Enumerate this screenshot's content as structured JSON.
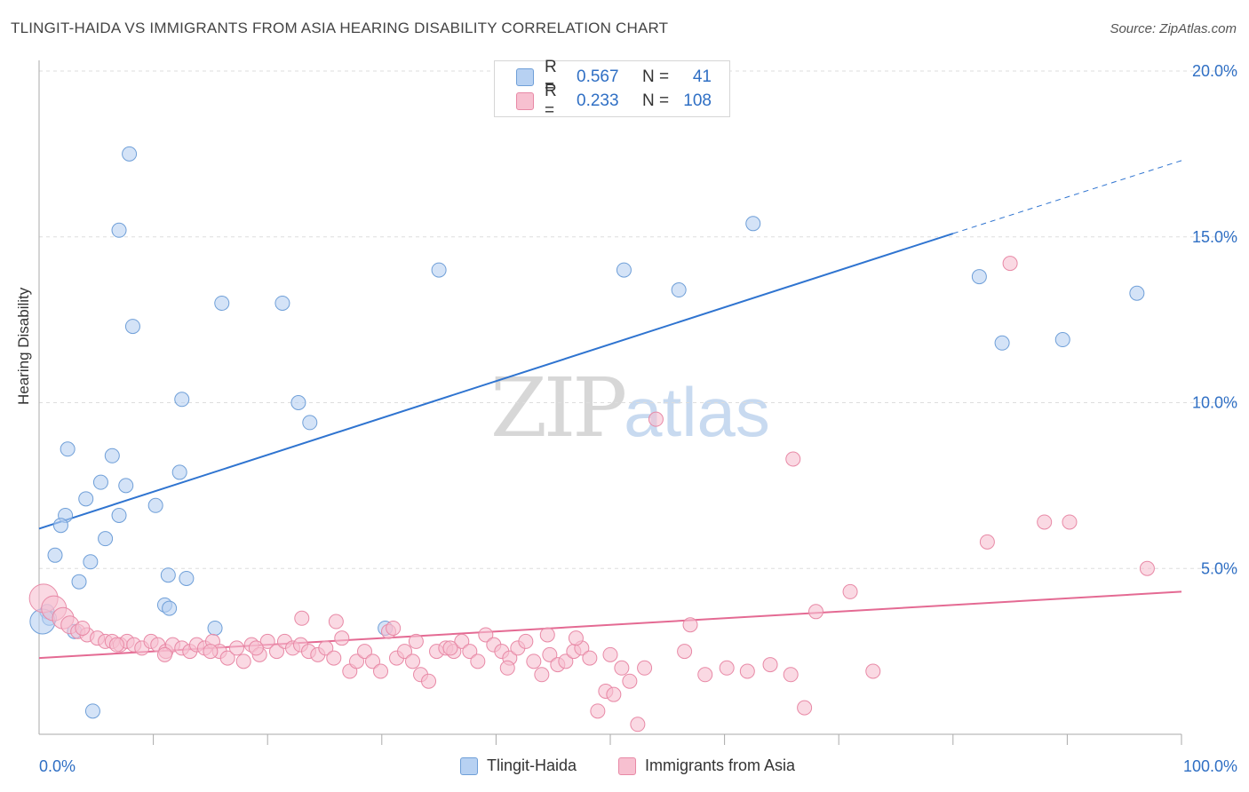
{
  "header": {
    "title": "TLINGIT-HAIDA VS IMMIGRANTS FROM ASIA HEARING DISABILITY CORRELATION CHART",
    "source": "Source: ZipAtlas.com"
  },
  "watermark": {
    "zip": "ZIP",
    "atlas": "atlas"
  },
  "legend": {
    "rows": [
      {
        "r_label": "R =",
        "r_value": "0.567",
        "n_label": "N =",
        "n_value": "41"
      },
      {
        "r_label": "R =",
        "r_value": "0.233",
        "n_label": "N =",
        "n_value": "108"
      }
    ]
  },
  "colors": {
    "blue_fill": "#b7d1f2",
    "blue_stroke": "#6f9fd8",
    "blue_line": "#2f74d0",
    "pink_fill": "#f7c0d0",
    "pink_stroke": "#e889a6",
    "pink_line": "#e46a93",
    "grid": "#dddddd",
    "tick_label": "#2f6fc4"
  },
  "chart_data": {
    "type": "scatter",
    "title": "TLINGIT-HAIDA VS IMMIGRANTS FROM ASIA HEARING DISABILITY CORRELATION CHART",
    "xlabel": "",
    "ylabel": "Hearing Disability",
    "xlim": [
      0,
      100
    ],
    "ylim": [
      0,
      20
    ],
    "x_tick_labels": [
      "0.0%",
      "100.0%"
    ],
    "y_ticks": [
      5,
      10,
      15,
      20
    ],
    "y_tick_labels": [
      "5.0%",
      "10.0%",
      "15.0%",
      "20.0%"
    ],
    "grid": true,
    "legend_position": "bottom",
    "series": [
      {
        "name": "Tlingit-Haida",
        "R": 0.567,
        "N": 41,
        "trend": {
          "x0": 0,
          "y0": 6.2,
          "x1": 80,
          "y1": 15.1,
          "dash_to_x": 100,
          "dash_to_y": 17.3
        },
        "points": [
          [
            7.9,
            17.5
          ],
          [
            7.0,
            15.2
          ],
          [
            8.2,
            12.3
          ],
          [
            16.0,
            13.0
          ],
          [
            21.3,
            13.0
          ],
          [
            12.5,
            10.1
          ],
          [
            22.7,
            10.0
          ],
          [
            23.7,
            9.4
          ],
          [
            2.5,
            8.6
          ],
          [
            6.4,
            8.4
          ],
          [
            12.3,
            7.9
          ],
          [
            5.4,
            7.6
          ],
          [
            7.6,
            7.5
          ],
          [
            4.1,
            7.1
          ],
          [
            10.2,
            6.9
          ],
          [
            2.3,
            6.6
          ],
          [
            7.0,
            6.6
          ],
          [
            1.9,
            6.3
          ],
          [
            5.8,
            5.9
          ],
          [
            1.4,
            5.4
          ],
          [
            4.5,
            5.2
          ],
          [
            11.3,
            4.8
          ],
          [
            12.9,
            4.7
          ],
          [
            3.5,
            4.6
          ],
          [
            0.7,
            3.7
          ],
          [
            0.9,
            3.5
          ],
          [
            0.3,
            3.4
          ],
          [
            11.0,
            3.9
          ],
          [
            11.4,
            3.8
          ],
          [
            15.4,
            3.2
          ],
          [
            30.3,
            3.2
          ],
          [
            3.1,
            3.1
          ],
          [
            4.7,
            0.7
          ],
          [
            35.0,
            14.0
          ],
          [
            56.0,
            13.4
          ],
          [
            51.2,
            14.0
          ],
          [
            62.5,
            15.4
          ],
          [
            82.3,
            13.8
          ],
          [
            96.1,
            13.3
          ],
          [
            89.6,
            11.9
          ],
          [
            84.3,
            11.8
          ]
        ]
      },
      {
        "name": "Immigrants from Asia",
        "R": 0.233,
        "N": 108,
        "trend": {
          "x0": 0,
          "y0": 2.3,
          "x1": 100,
          "y1": 4.3
        },
        "points": [
          [
            0.4,
            4.1
          ],
          [
            1.3,
            3.8
          ],
          [
            2.1,
            3.5
          ],
          [
            2.7,
            3.3
          ],
          [
            3.4,
            3.1
          ],
          [
            4.2,
            3.0
          ],
          [
            5.1,
            2.9
          ],
          [
            5.8,
            2.8
          ],
          [
            6.4,
            2.8
          ],
          [
            7.1,
            2.7
          ],
          [
            7.7,
            2.8
          ],
          [
            8.3,
            2.7
          ],
          [
            9.0,
            2.6
          ],
          [
            9.8,
            2.8
          ],
          [
            10.4,
            2.7
          ],
          [
            11.1,
            2.5
          ],
          [
            11.7,
            2.7
          ],
          [
            12.5,
            2.6
          ],
          [
            13.2,
            2.5
          ],
          [
            13.8,
            2.7
          ],
          [
            14.5,
            2.6
          ],
          [
            15.2,
            2.8
          ],
          [
            15.8,
            2.5
          ],
          [
            16.5,
            2.3
          ],
          [
            17.3,
            2.6
          ],
          [
            17.9,
            2.2
          ],
          [
            18.6,
            2.7
          ],
          [
            19.3,
            2.4
          ],
          [
            20.0,
            2.8
          ],
          [
            20.8,
            2.5
          ],
          [
            21.5,
            2.8
          ],
          [
            22.2,
            2.6
          ],
          [
            22.9,
            2.7
          ],
          [
            23.6,
            2.5
          ],
          [
            24.4,
            2.4
          ],
          [
            25.1,
            2.6
          ],
          [
            25.8,
            2.3
          ],
          [
            26.5,
            2.9
          ],
          [
            27.2,
            1.9
          ],
          [
            27.8,
            2.2
          ],
          [
            28.5,
            2.5
          ],
          [
            29.2,
            2.2
          ],
          [
            29.9,
            1.9
          ],
          [
            30.6,
            3.1
          ],
          [
            31.3,
            2.3
          ],
          [
            32.0,
            2.5
          ],
          [
            32.7,
            2.2
          ],
          [
            33.4,
            1.8
          ],
          [
            34.1,
            1.6
          ],
          [
            34.8,
            2.5
          ],
          [
            35.6,
            2.6
          ],
          [
            36.3,
            2.5
          ],
          [
            37.0,
            2.8
          ],
          [
            37.7,
            2.5
          ],
          [
            38.4,
            2.2
          ],
          [
            39.1,
            3.0
          ],
          [
            39.8,
            2.7
          ],
          [
            40.5,
            2.5
          ],
          [
            41.2,
            2.3
          ],
          [
            41.9,
            2.6
          ],
          [
            42.6,
            2.8
          ],
          [
            43.3,
            2.2
          ],
          [
            44.0,
            1.8
          ],
          [
            44.7,
            2.4
          ],
          [
            45.4,
            2.1
          ],
          [
            46.1,
            2.2
          ],
          [
            46.8,
            2.5
          ],
          [
            47.5,
            2.6
          ],
          [
            48.2,
            2.3
          ],
          [
            48.9,
            0.7
          ],
          [
            49.6,
            1.3
          ],
          [
            50.3,
            1.2
          ],
          [
            51.0,
            2.0
          ],
          [
            51.7,
            1.6
          ],
          [
            52.4,
            0.3
          ],
          [
            54.0,
            9.5
          ],
          [
            56.5,
            2.5
          ],
          [
            58.3,
            1.8
          ],
          [
            60.2,
            2.0
          ],
          [
            62.0,
            1.9
          ],
          [
            64.0,
            2.1
          ],
          [
            65.8,
            1.8
          ],
          [
            67.0,
            0.8
          ],
          [
            68.0,
            3.7
          ],
          [
            71.0,
            4.3
          ],
          [
            73.0,
            1.9
          ],
          [
            66.0,
            8.3
          ],
          [
            53.0,
            2.0
          ],
          [
            83.0,
            5.8
          ],
          [
            85.0,
            14.2
          ],
          [
            90.2,
            6.4
          ],
          [
            97.0,
            5.0
          ],
          [
            88.0,
            6.4
          ],
          [
            57.0,
            3.3
          ],
          [
            50.0,
            2.4
          ],
          [
            47.0,
            2.9
          ],
          [
            44.5,
            3.0
          ],
          [
            41.0,
            2.0
          ],
          [
            36.0,
            2.6
          ],
          [
            33.0,
            2.8
          ],
          [
            31.0,
            3.2
          ],
          [
            26.0,
            3.4
          ],
          [
            23.0,
            3.5
          ],
          [
            19.0,
            2.6
          ],
          [
            15.0,
            2.5
          ],
          [
            11.0,
            2.4
          ],
          [
            6.8,
            2.7
          ],
          [
            3.8,
            3.2
          ]
        ]
      }
    ]
  },
  "bottom_legend": {
    "items": [
      {
        "label": "Tlingit-Haida"
      },
      {
        "label": "Immigrants from Asia"
      }
    ]
  }
}
